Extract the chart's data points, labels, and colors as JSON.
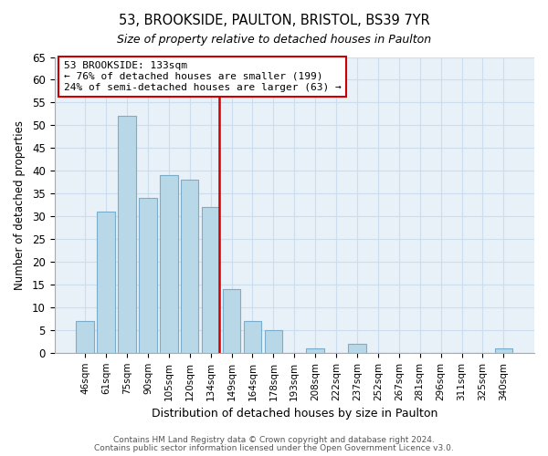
{
  "title": "53, BROOKSIDE, PAULTON, BRISTOL, BS39 7YR",
  "subtitle": "Size of property relative to detached houses in Paulton",
  "xlabel": "Distribution of detached houses by size in Paulton",
  "ylabel": "Number of detached properties",
  "bar_labels": [
    "46sqm",
    "61sqm",
    "75sqm",
    "90sqm",
    "105sqm",
    "120sqm",
    "134sqm",
    "149sqm",
    "164sqm",
    "178sqm",
    "193sqm",
    "208sqm",
    "222sqm",
    "237sqm",
    "252sqm",
    "267sqm",
    "281sqm",
    "296sqm",
    "311sqm",
    "325sqm",
    "340sqm"
  ],
  "bar_heights": [
    7,
    31,
    52,
    34,
    39,
    38,
    32,
    14,
    7,
    5,
    0,
    1,
    0,
    2,
    0,
    0,
    0,
    0,
    0,
    0,
    1
  ],
  "bar_color": "#b8d8e8",
  "bar_edge_color": "#7aadcc",
  "reference_line_index": 6,
  "reference_line_color": "#cc0000",
  "annotation_title": "53 BROOKSIDE: 133sqm",
  "annotation_line1": "← 76% of detached houses are smaller (199)",
  "annotation_line2": "24% of semi-detached houses are larger (63) →",
  "annotation_box_edge_color": "#cc0000",
  "ylim": [
    0,
    65
  ],
  "yticks": [
    0,
    5,
    10,
    15,
    20,
    25,
    30,
    35,
    40,
    45,
    50,
    55,
    60,
    65
  ],
  "footer1": "Contains HM Land Registry data © Crown copyright and database right 2024.",
  "footer2": "Contains public sector information licensed under the Open Government Licence v3.0.",
  "grid_color": "#ccddee",
  "plot_bg_color": "#e8f0f8",
  "fig_bg_color": "#ffffff"
}
